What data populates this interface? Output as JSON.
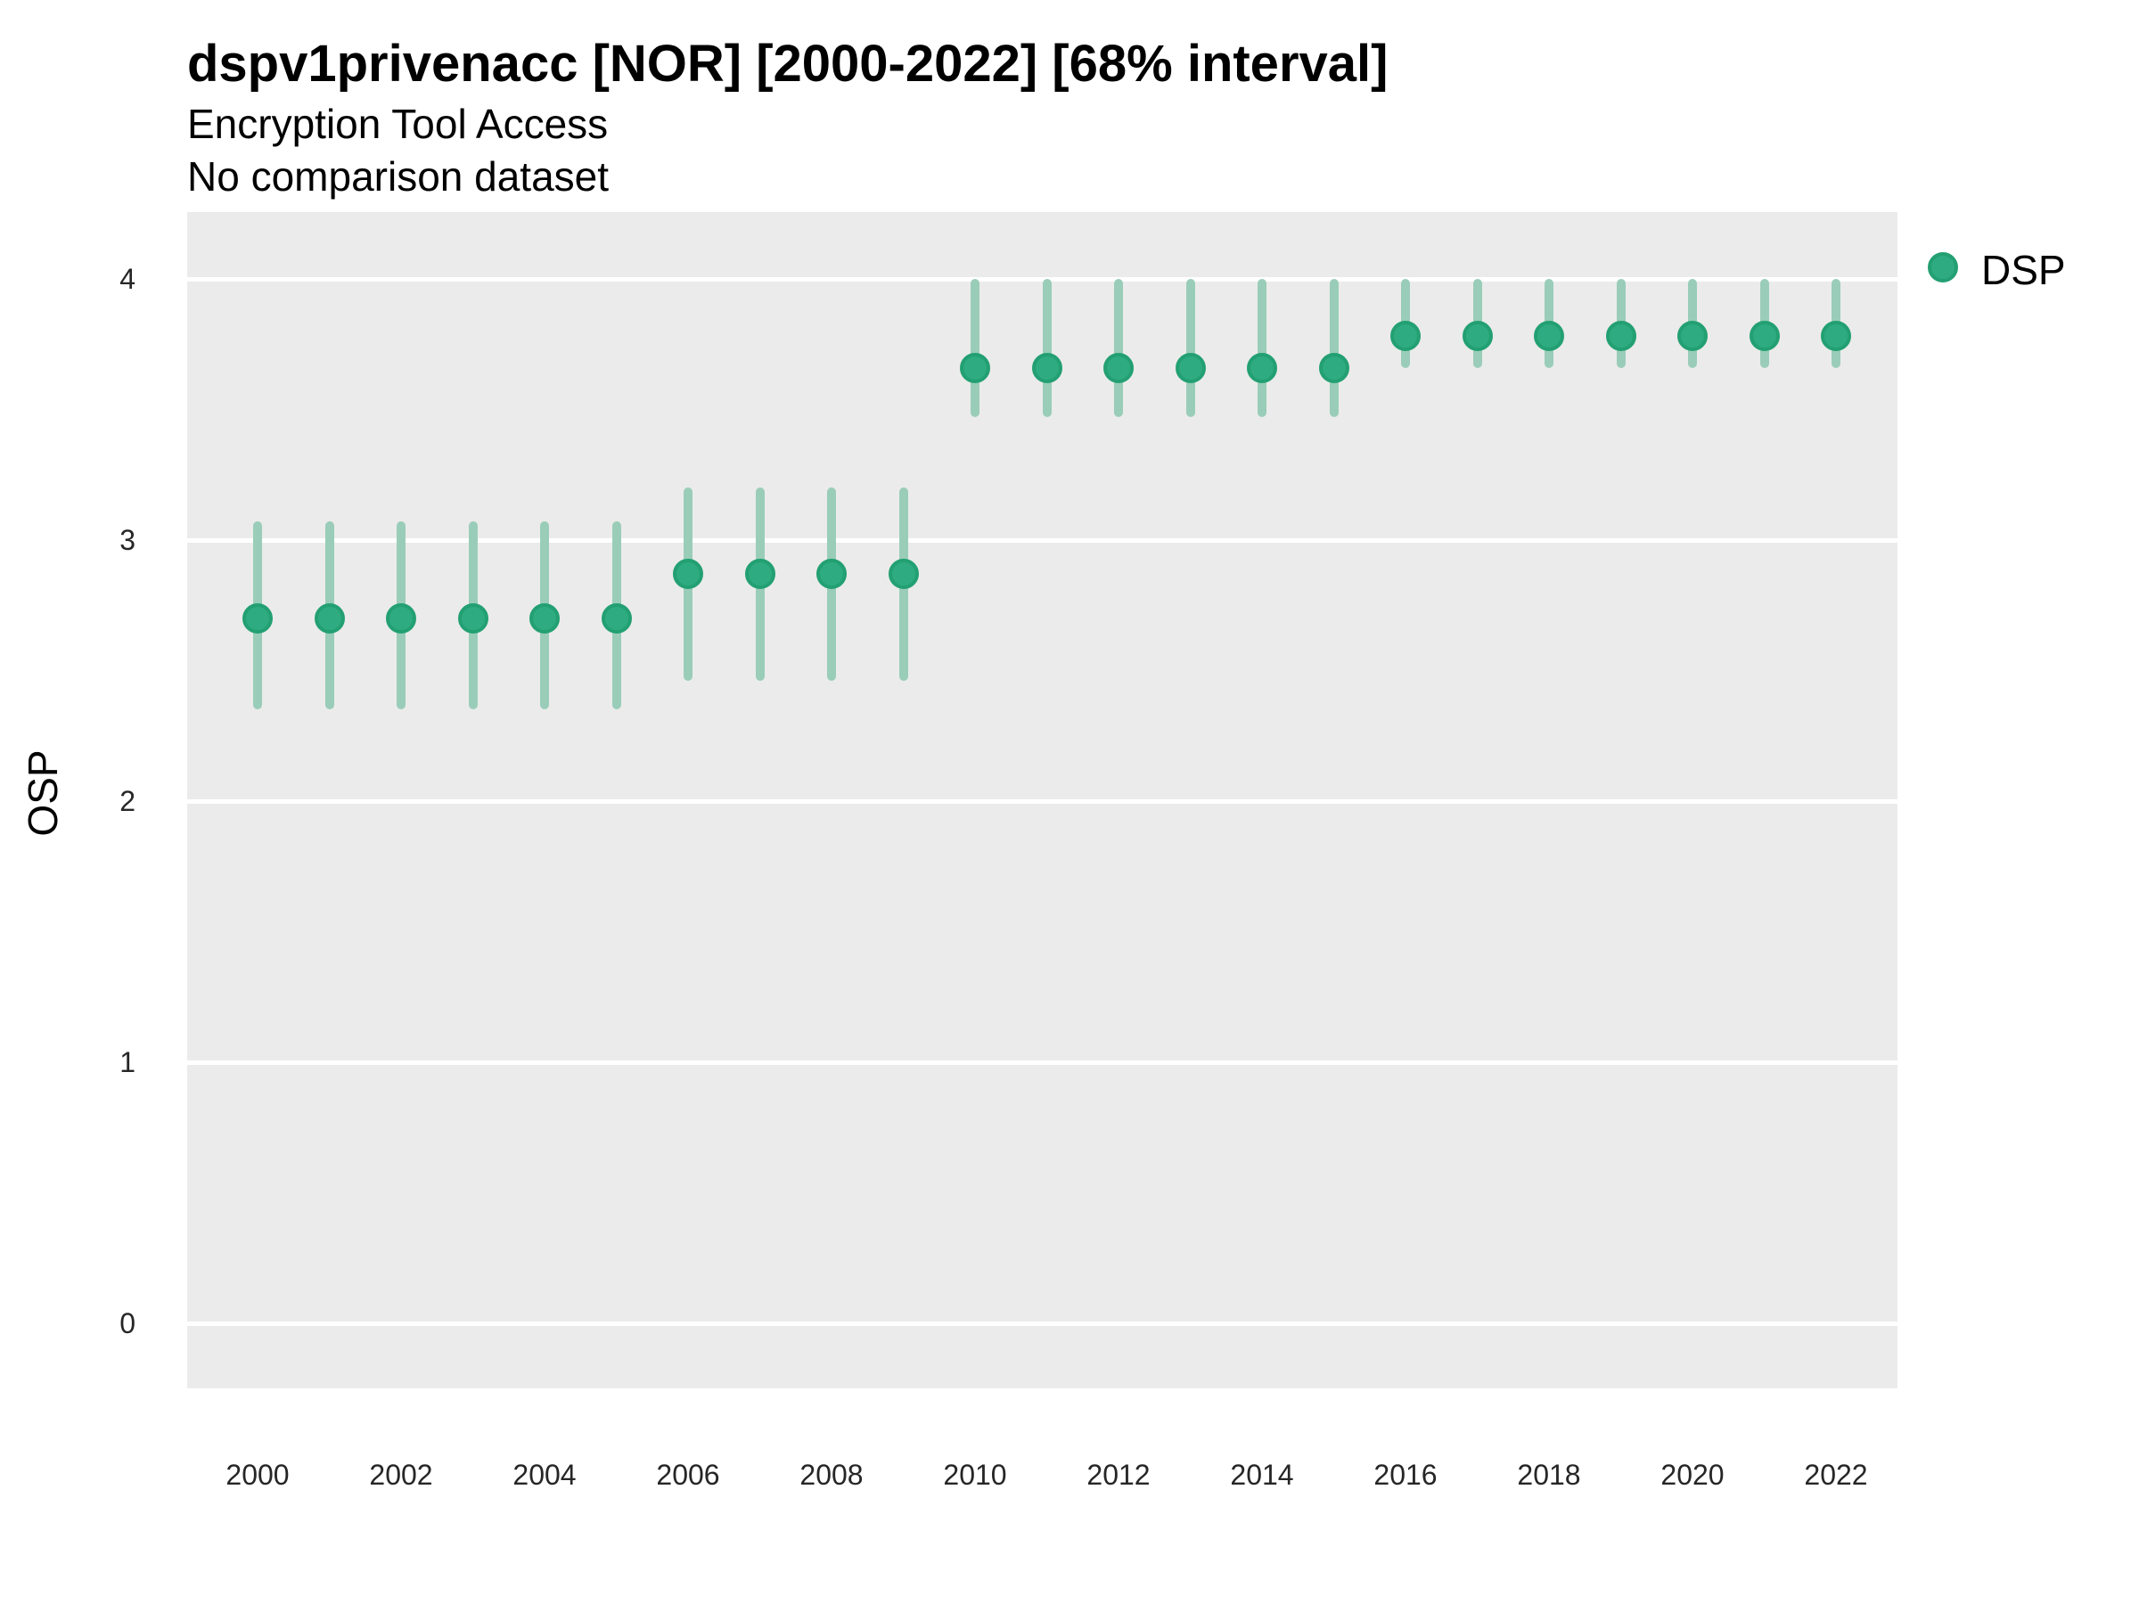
{
  "header": {
    "title": "dspv1privenacc [NOR] [2000-2022] [68% interval]",
    "subtitle1": "Encryption Tool Access",
    "subtitle2": "No comparison dataset"
  },
  "legend": {
    "label": "DSP"
  },
  "y_axis": {
    "label": "OSP"
  },
  "colors": {
    "point_fill": "#2EAB80",
    "point_border": "#23A073",
    "interval_bar": "#9ACDB9",
    "panel_background": "#EBEBEB",
    "gridline": "#FFFFFF",
    "title_text": "#000000",
    "tick_text": "#262626"
  },
  "chart_data": {
    "type": "scatter",
    "title": "dspv1privenacc [NOR] [2000-2022] [68% interval]",
    "subtitle": [
      "Encryption Tool Access",
      "No comparison dataset"
    ],
    "xlabel": "",
    "ylabel": "OSP",
    "interval": "68% interval",
    "legend_position": "right",
    "grid": "horizontal-major-only",
    "ylim": [
      -0.25,
      4.26
    ],
    "yticks": [
      0,
      1,
      2,
      3,
      4
    ],
    "xticks": [
      2000,
      2002,
      2004,
      2006,
      2008,
      2010,
      2012,
      2014,
      2016,
      2018,
      2020,
      2022
    ],
    "series": [
      {
        "name": "DSP",
        "x": [
          2000,
          2001,
          2002,
          2003,
          2004,
          2005,
          2006,
          2007,
          2008,
          2009,
          2010,
          2011,
          2012,
          2013,
          2014,
          2015,
          2016,
          2017,
          2018,
          2019,
          2020,
          2021,
          2022
        ],
        "y": [
          2.7,
          2.7,
          2.7,
          2.7,
          2.7,
          2.7,
          2.87,
          2.87,
          2.87,
          2.87,
          3.66,
          3.66,
          3.66,
          3.66,
          3.66,
          3.66,
          3.78,
          3.78,
          3.78,
          3.78,
          3.78,
          3.78,
          3.78
        ],
        "y_lower": [
          2.35,
          2.35,
          2.35,
          2.35,
          2.35,
          2.35,
          2.46,
          2.46,
          2.46,
          2.46,
          3.47,
          3.47,
          3.47,
          3.47,
          3.47,
          3.47,
          3.66,
          3.66,
          3.66,
          3.66,
          3.66,
          3.66,
          3.66
        ],
        "y_upper": [
          3.07,
          3.07,
          3.07,
          3.07,
          3.07,
          3.07,
          3.2,
          3.2,
          3.2,
          3.2,
          4.0,
          4.0,
          4.0,
          4.0,
          4.0,
          4.0,
          4.0,
          4.0,
          4.0,
          4.0,
          4.0,
          4.0,
          4.0
        ]
      }
    ]
  }
}
